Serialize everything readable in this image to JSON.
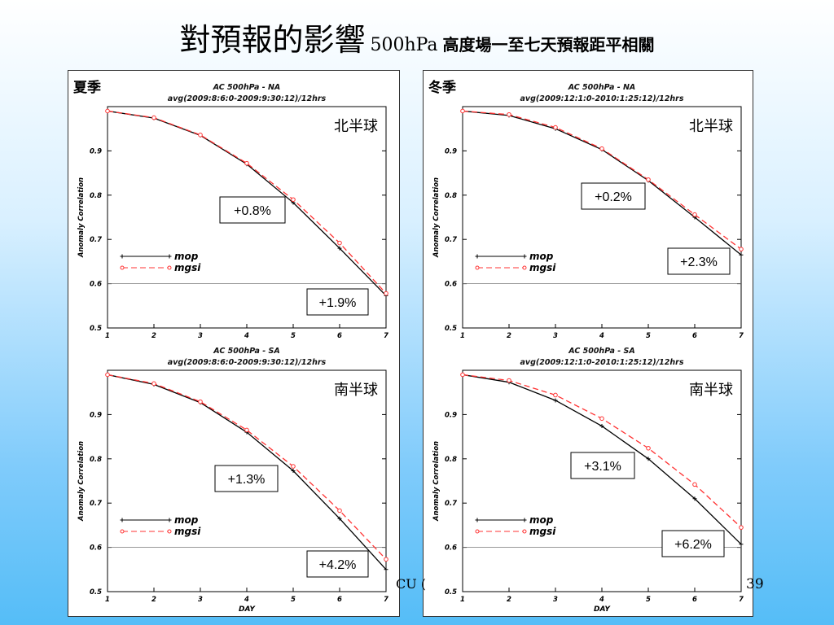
{
  "title": {
    "main": "對預報的影響",
    "level": "500hPa",
    "subtitle": "高度場一至七天預報距平相關"
  },
  "footer": {
    "fragment": "CU (",
    "page_number": "39"
  },
  "seasons": {
    "summer": "夏季",
    "winter": "冬季"
  },
  "colors": {
    "mop": "#000000",
    "mgsi": "#ff3333"
  },
  "chart_data": [
    {
      "id": "summer-nh",
      "type": "line",
      "title": "AC 500hPa - NA",
      "subtitle": "avg(2009:8:6:0-2009:9:30:12)/12hrs",
      "region_label": "北半球",
      "xlabel": "",
      "ylabel": "Anomaly Correlation",
      "x": [
        1,
        2,
        3,
        4,
        5,
        6,
        7
      ],
      "xticks": [
        "1",
        "2",
        "3",
        "4",
        "5",
        "6",
        "7"
      ],
      "ylim": [
        0.5,
        1.0
      ],
      "yticks": [
        "0.5",
        "0.6",
        "0.7",
        "0.8",
        "0.9"
      ],
      "reference_line": 0.6,
      "series": [
        {
          "name": "mop",
          "style": "solid",
          "values": [
            0.99,
            0.974,
            0.935,
            0.87,
            0.783,
            0.68,
            0.573
          ]
        },
        {
          "name": "mgsi",
          "style": "dashed",
          "values": [
            0.99,
            0.975,
            0.936,
            0.872,
            0.79,
            0.692,
            0.578
          ]
        }
      ],
      "annotations": [
        "+0.8%",
        "+1.9%"
      ]
    },
    {
      "id": "winter-nh",
      "type": "line",
      "title": "AC 500hPa - NA",
      "subtitle": "avg(2009:12:1:0-2010:1:25:12)/12hrs",
      "region_label": "北半球",
      "xlabel": "",
      "ylabel": "Anomaly Correlation",
      "x": [
        1,
        2,
        3,
        4,
        5,
        6,
        7
      ],
      "xticks": [
        "1",
        "2",
        "3",
        "4",
        "5",
        "6",
        "7"
      ],
      "ylim": [
        0.5,
        1.0
      ],
      "yticks": [
        "0.5",
        "0.6",
        "0.7",
        "0.8",
        "0.9"
      ],
      "reference_line": 0.6,
      "series": [
        {
          "name": "mop",
          "style": "solid",
          "values": [
            0.99,
            0.98,
            0.95,
            0.903,
            0.833,
            0.75,
            0.665
          ]
        },
        {
          "name": "mgsi",
          "style": "dashed",
          "values": [
            0.99,
            0.982,
            0.953,
            0.905,
            0.835,
            0.756,
            0.678
          ]
        }
      ],
      "annotations": [
        "+0.2%",
        "+2.3%"
      ]
    },
    {
      "id": "summer-sh",
      "type": "line",
      "title": "AC 500hPa - SA",
      "subtitle": "avg(2009:8:6:0-2009:9:30:12)/12hrs",
      "region_label": "南半球",
      "xlabel": "DAY",
      "ylabel": "Anomaly Correlation",
      "x": [
        1,
        2,
        3,
        4,
        5,
        6,
        7
      ],
      "xticks": [
        "1",
        "2",
        "3",
        "4",
        "5",
        "6",
        "7"
      ],
      "ylim": [
        0.5,
        1.0
      ],
      "yticks": [
        "0.5",
        "0.6",
        "0.7",
        "0.8",
        "0.9"
      ],
      "reference_line": 0.6,
      "series": [
        {
          "name": "mop",
          "style": "solid",
          "values": [
            0.99,
            0.968,
            0.927,
            0.86,
            0.773,
            0.665,
            0.55
          ]
        },
        {
          "name": "mgsi",
          "style": "dashed",
          "values": [
            0.99,
            0.97,
            0.929,
            0.865,
            0.783,
            0.683,
            0.573
          ]
        }
      ],
      "annotations": [
        "+1.3%",
        "+4.2%"
      ]
    },
    {
      "id": "winter-sh",
      "type": "line",
      "title": "AC 500hPa - SA",
      "subtitle": "avg(2009:12:1:0-2010:1:25:12)/12hrs",
      "region_label": "南半球",
      "xlabel": "DAY",
      "ylabel": "Anomaly Correlation",
      "x": [
        1,
        2,
        3,
        4,
        5,
        6,
        7
      ],
      "xticks": [
        "1",
        "2",
        "3",
        "4",
        "5",
        "6",
        "7"
      ],
      "ylim": [
        0.5,
        1.0
      ],
      "yticks": [
        "0.5",
        "0.6",
        "0.7",
        "0.8",
        "0.9"
      ],
      "reference_line": 0.6,
      "series": [
        {
          "name": "mop",
          "style": "solid",
          "values": [
            0.99,
            0.973,
            0.932,
            0.874,
            0.8,
            0.71,
            0.607
          ]
        },
        {
          "name": "mgsi",
          "style": "dashed",
          "values": [
            0.99,
            0.977,
            0.944,
            0.891,
            0.824,
            0.742,
            0.645
          ]
        }
      ],
      "annotations": [
        "+3.1%",
        "+6.2%"
      ]
    }
  ]
}
